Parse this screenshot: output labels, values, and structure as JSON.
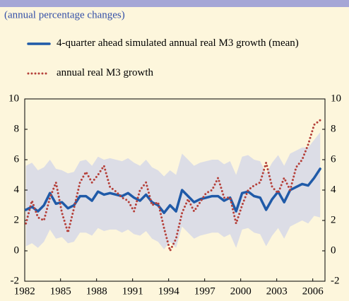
{
  "chart_data": {
    "type": "line",
    "subtitle": "(annual percentage changes)",
    "x": [
      1983,
      1983.5,
      1984,
      1984.5,
      1985,
      1985.5,
      1986,
      1986.5,
      1987,
      1987.5,
      1988,
      1988.5,
      1989,
      1989.5,
      1990,
      1990.5,
      1991,
      1991.5,
      1992,
      1992.5,
      1993,
      1993.5,
      1994,
      1994.5,
      1995,
      1995.5,
      1996,
      1996.5,
      1997,
      1997.5,
      1998,
      1998.5,
      1999,
      1999.5,
      2000,
      2000.5,
      2001,
      2001.5,
      2002,
      2002.5,
      2003,
      2003.5,
      2004,
      2004.5,
      2005,
      2005.5,
      2006,
      2006.5,
      2007,
      2007.5
    ],
    "band": {
      "color": "#dcdde6",
      "upper": [
        5.6,
        5.8,
        5.3,
        5.5,
        6.0,
        5.4,
        5.3,
        5.1,
        5.2,
        5.9,
        6.0,
        5.6,
        6.2,
        6.0,
        6.1,
        6.0,
        5.9,
        6.1,
        5.8,
        5.6,
        6.0,
        5.5,
        5.3,
        4.9,
        5.3,
        5.0,
        6.4,
        6.0,
        5.6,
        5.8,
        5.9,
        6.0,
        6.0,
        5.7,
        5.9,
        5.0,
        6.2,
        6.3,
        6.0,
        5.9,
        5.1,
        5.8,
        6.3,
        5.6,
        6.4,
        6.6,
        6.8,
        6.8,
        7.3,
        7.8
      ],
      "lower": [
        0.3,
        0.5,
        0.2,
        0.6,
        1.4,
        0.8,
        0.9,
        0.5,
        0.6,
        1.2,
        1.2,
        1.0,
        1.5,
        1.3,
        1.4,
        1.4,
        1.2,
        1.4,
        1.1,
        1.0,
        1.3,
        0.8,
        0.6,
        0.1,
        0.6,
        0.2,
        1.6,
        1.2,
        0.8,
        1.0,
        1.1,
        1.2,
        1.2,
        0.9,
        1.1,
        0.2,
        1.4,
        1.5,
        1.2,
        1.1,
        0.3,
        1.0,
        1.5,
        0.8,
        1.6,
        1.8,
        2.0,
        1.8,
        2.3,
        2.2
      ]
    },
    "series": [
      {
        "name": "4-quarter ahead simulated annual real M3 growth (mean)",
        "color": "#1f5aa8",
        "style": "solid",
        "values": [
          2.7,
          2.9,
          2.6,
          3.0,
          3.8,
          3.1,
          3.2,
          2.8,
          3.0,
          3.6,
          3.6,
          3.3,
          3.9,
          3.7,
          3.8,
          3.7,
          3.6,
          3.8,
          3.5,
          3.3,
          3.7,
          3.2,
          3.0,
          2.5,
          3.0,
          2.6,
          4.0,
          3.6,
          3.2,
          3.4,
          3.5,
          3.6,
          3.6,
          3.3,
          3.5,
          2.6,
          3.8,
          3.9,
          3.6,
          3.5,
          2.7,
          3.4,
          3.9,
          3.2,
          4.0,
          4.2,
          4.4,
          4.3,
          4.8,
          5.4
        ]
      },
      {
        "name": "annual real M3 growth",
        "color": "#b5403a",
        "style": "dotted",
        "values": [
          1.8,
          3.3,
          2.2,
          2.0,
          3.5,
          4.5,
          2.5,
          1.2,
          2.8,
          4.5,
          5.2,
          4.5,
          5.0,
          5.6,
          4.2,
          3.9,
          3.5,
          3.3,
          2.6,
          4.0,
          4.5,
          3.0,
          3.2,
          1.5,
          0.0,
          0.8,
          2.5,
          3.4,
          2.6,
          3.2,
          3.8,
          4.0,
          4.8,
          3.5,
          3.5,
          1.8,
          3.0,
          4.0,
          4.3,
          4.5,
          5.8,
          4.2,
          3.8,
          4.8,
          4.0,
          5.5,
          6.0,
          7.0,
          8.3,
          8.6
        ]
      }
    ],
    "xlim": [
      1982.9,
      2007.9
    ],
    "xticks": [
      1982,
      1985,
      1988,
      1991,
      1994,
      1997,
      2000,
      2003,
      2006
    ],
    "ylim": [
      -2,
      10
    ],
    "yticks": [
      -2,
      0,
      2,
      4,
      6,
      8,
      10
    ]
  }
}
